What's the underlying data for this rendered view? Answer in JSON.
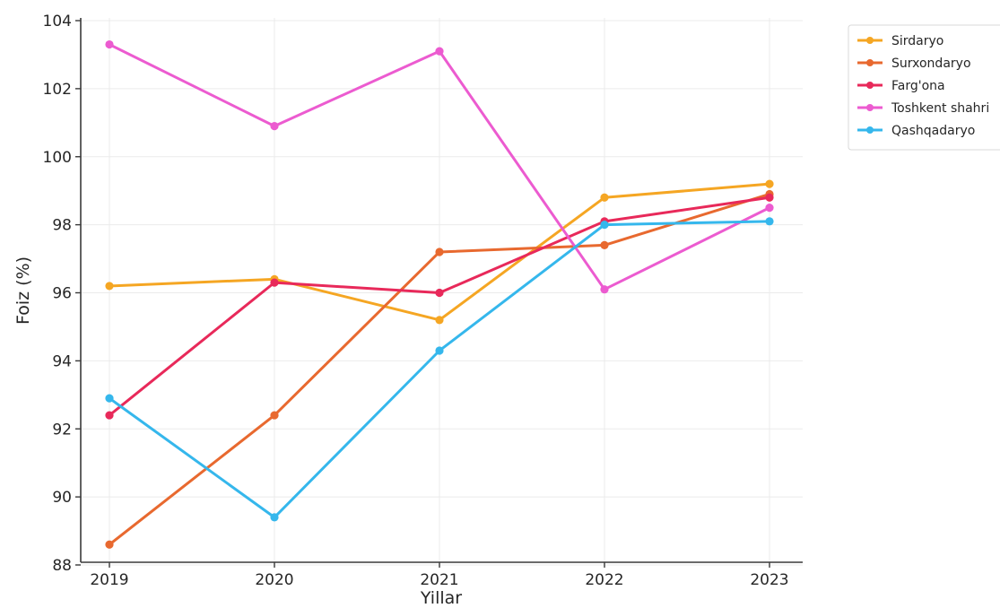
{
  "chart_data": {
    "type": "line",
    "title": "",
    "xlabel": "Yillar",
    "ylabel": "Foiz (%)",
    "x": [
      2019,
      2020,
      2021,
      2022,
      2023
    ],
    "x_tick_labels": [
      "2019",
      "2020",
      "2021",
      "2022",
      "2023"
    ],
    "ylim": [
      88,
      104
    ],
    "y_ticks": [
      88,
      90,
      92,
      94,
      96,
      98,
      100,
      102,
      104
    ],
    "y_tick_labels": [
      "88",
      "90",
      "92",
      "94",
      "96",
      "98",
      "100",
      "102",
      "104"
    ],
    "grid": true,
    "legend_position": "top-right",
    "series": [
      {
        "name": "Sirdaryo",
        "color": "#f5a623",
        "values": [
          96.2,
          96.4,
          95.2,
          98.8,
          99.2
        ]
      },
      {
        "name": "Surxondaryo",
        "color": "#e8692f",
        "values": [
          88.6,
          92.4,
          97.2,
          97.4,
          98.9
        ]
      },
      {
        "name": "Farg'ona",
        "color": "#e8295a",
        "values": [
          92.4,
          96.3,
          96.0,
          98.1,
          98.8
        ]
      },
      {
        "name": "Toshkent shahri",
        "color": "#ec5bd0",
        "values": [
          103.3,
          100.9,
          103.1,
          96.1,
          98.5
        ]
      },
      {
        "name": "Qashqadaryo",
        "color": "#35b7ec",
        "values": [
          92.9,
          89.4,
          94.3,
          98.0,
          98.1
        ]
      }
    ]
  }
}
